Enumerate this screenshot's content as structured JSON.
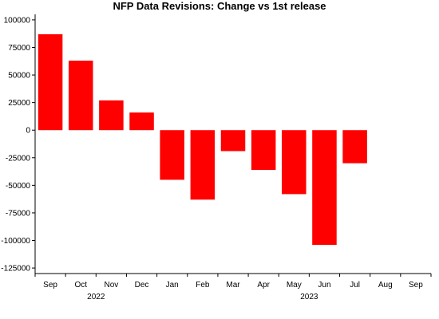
{
  "chart_data": {
    "type": "bar",
    "title": "NFP Data Revisions: Change vs 1st release",
    "xlabel": "",
    "ylabel": "",
    "categories": [
      "Sep",
      "Oct",
      "Nov",
      "Dec",
      "Jan",
      "Feb",
      "Mar",
      "Apr",
      "May",
      "Jun",
      "Jul",
      "Aug",
      "Sep"
    ],
    "year_labels": [
      {
        "label": "2022",
        "under_category_index": 1.5
      },
      {
        "label": "2023",
        "under_category_index": 8.5
      }
    ],
    "values": [
      87000,
      63000,
      27000,
      16000,
      -45000,
      -63000,
      -19000,
      -36000,
      -58000,
      -104000,
      -30000,
      null,
      null
    ],
    "ylim": [
      -130000,
      105000
    ],
    "yticks": [
      100000,
      75000,
      50000,
      25000,
      0,
      -25000,
      -50000,
      -75000,
      -100000,
      -125000
    ],
    "bar_color": "#ff0000",
    "grid": false,
    "legend": "none"
  }
}
